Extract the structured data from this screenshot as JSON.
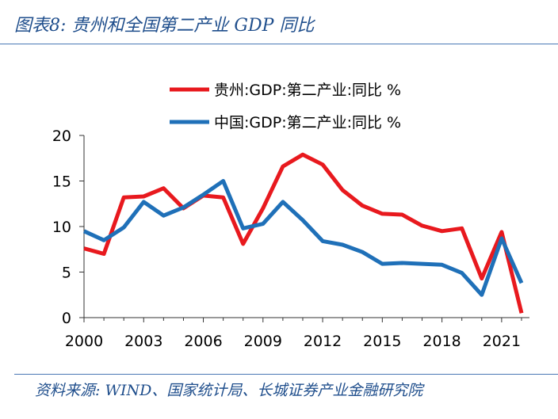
{
  "header": {
    "title": "图表8:  贵州和全国第二产业 GDP 同比"
  },
  "footer": {
    "source": "资料来源:  WIND、国家统计局、长城证券产业金融研究院"
  },
  "chart_data": {
    "type": "line",
    "title": "图表8:  贵州和全国第二产业 GDP 同比",
    "xlabel": "",
    "ylabel": "",
    "ylim": [
      0,
      20
    ],
    "yticks": [
      0,
      5,
      10,
      15,
      20
    ],
    "xlim": [
      2000,
      2022.4
    ],
    "xticks": [
      2000,
      2003,
      2006,
      2009,
      2012,
      2015,
      2018,
      2021
    ],
    "legend_position": "top",
    "grid": false,
    "series": [
      {
        "name": "贵州:GDP:第二产业:同比 %",
        "color": "#e8191e",
        "x": [
          2000,
          2001,
          2002,
          2003,
          2004,
          2005,
          2006,
          2007,
          2008,
          2009,
          2010,
          2011,
          2012,
          2013,
          2014,
          2015,
          2016,
          2017,
          2018,
          2019,
          2020,
          2021,
          2022
        ],
        "values": [
          7.6,
          7.0,
          13.2,
          13.3,
          14.2,
          12.0,
          13.4,
          13.2,
          8.1,
          12.0,
          16.6,
          17.9,
          16.8,
          14.0,
          12.3,
          11.4,
          11.3,
          10.1,
          9.5,
          9.8,
          4.3,
          9.4,
          0.5
        ]
      },
      {
        "name": "中国:GDP:第二产业:同比 %",
        "color": "#1f70b8",
        "x": [
          2000,
          2001,
          2002,
          2003,
          2004,
          2005,
          2006,
          2007,
          2008,
          2009,
          2010,
          2011,
          2012,
          2013,
          2014,
          2015,
          2016,
          2017,
          2018,
          2019,
          2020,
          2021,
          2022
        ],
        "values": [
          9.5,
          8.5,
          9.9,
          12.7,
          11.2,
          12.1,
          13.5,
          15.0,
          9.8,
          10.3,
          12.7,
          10.7,
          8.4,
          8.0,
          7.2,
          5.9,
          6.0,
          5.9,
          5.8,
          4.9,
          2.5,
          8.7,
          3.8
        ]
      }
    ]
  }
}
